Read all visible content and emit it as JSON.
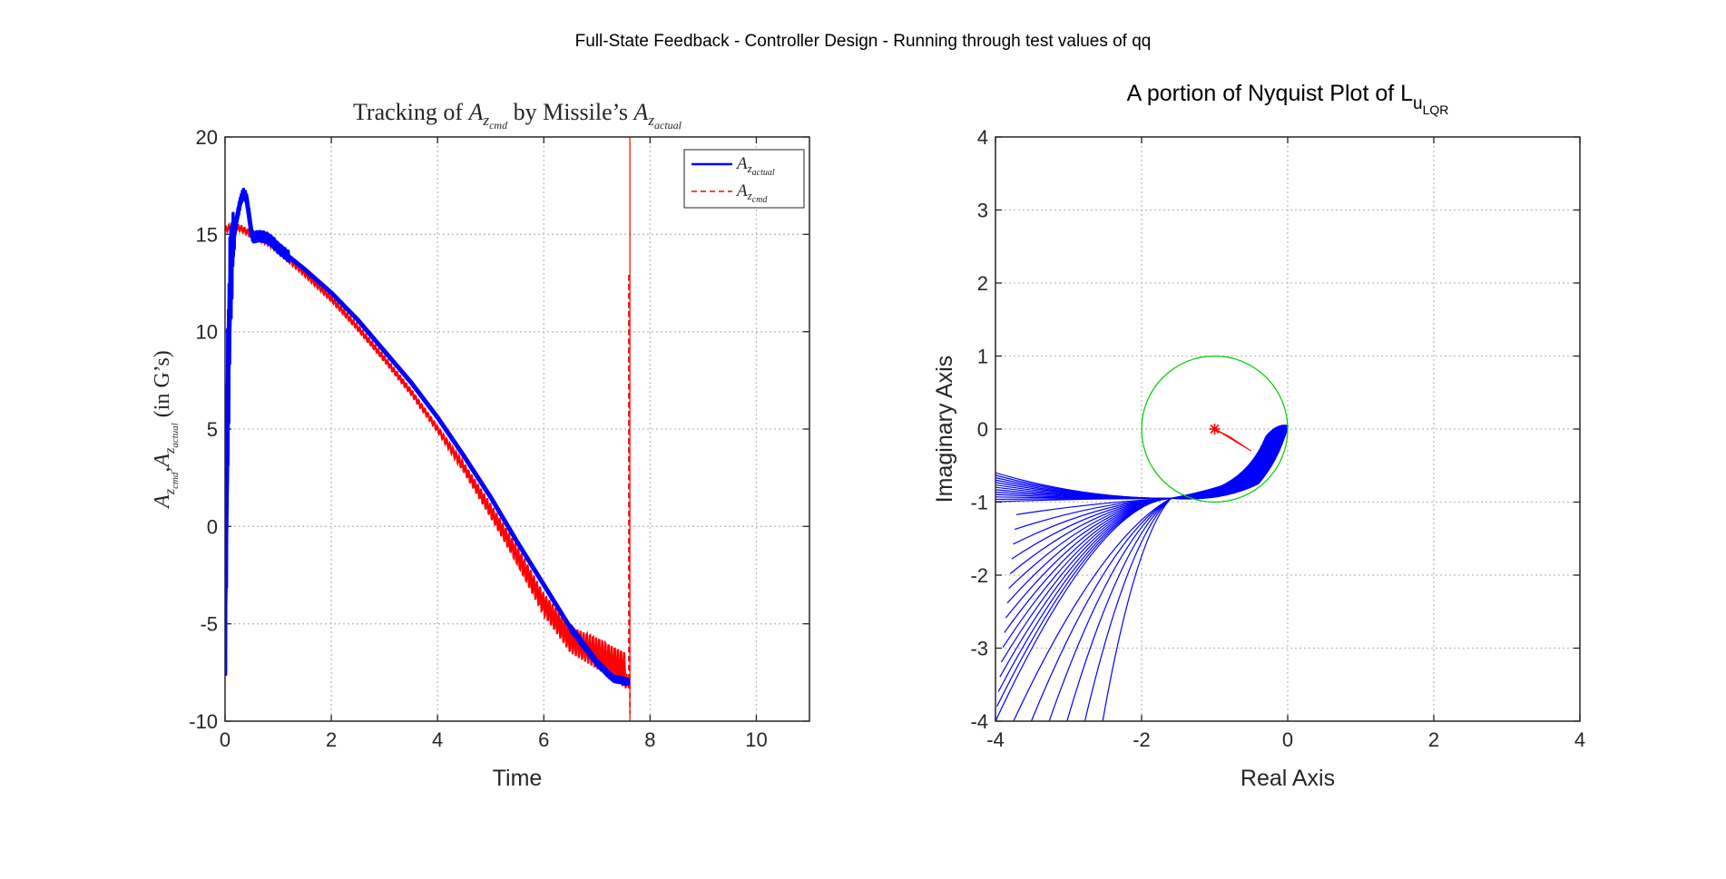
{
  "figure": {
    "suptitle": "Full-State Feedback - Controller Design - Running through test values of qq"
  },
  "chart_data": [
    {
      "type": "line",
      "title": "Tracking of A_zcmd by Missile's A_zactual",
      "title_parts": {
        "prefix": "Tracking of ",
        "a1": "A",
        "s1": "z",
        "ss1": "cmd",
        "mid": " by Missile’s ",
        "a2": "A",
        "s2": "z",
        "ss2": "actual"
      },
      "xlabel": "Time",
      "ylabel": "A_zcmd, A_zactual (in G's)",
      "ylabel_parts": {
        "a1": "A",
        "s1": "z",
        "ss1": "cmd",
        "comma": ",",
        "a2": "A",
        "s2": "z",
        "ss2": "actual",
        "rest": "  (in G’s)"
      },
      "xlim": [
        0,
        11
      ],
      "ylim": [
        -10,
        20
      ],
      "xticks": [
        "0",
        "2",
        "4",
        "6",
        "8",
        "10"
      ],
      "xtick_values": [
        0,
        2,
        4,
        6,
        8,
        10
      ],
      "yticks": [
        "-10",
        "-5",
        "0",
        "5",
        "10",
        "15",
        "20"
      ],
      "ytick_values": [
        -10,
        -5,
        0,
        5,
        10,
        15,
        20
      ],
      "grid": true,
      "legend_location": "top-right",
      "legend": [
        {
          "label": "A_zactual",
          "a": "A",
          "s": "z",
          "ss": "actual",
          "style": "solid"
        },
        {
          "label": "A_zcmd",
          "a": "A",
          "s": "z",
          "ss": "cmd",
          "style": "dashed"
        }
      ],
      "series": [
        {
          "name": "A_zactual",
          "color": "#0000ff",
          "style": "solid",
          "x": [
            0.0,
            0.03,
            0.06,
            0.1,
            0.15,
            0.2,
            0.25,
            0.3,
            0.35,
            0.4,
            0.45,
            0.5,
            0.55,
            0.6,
            0.7,
            0.8,
            0.9,
            1.0,
            1.5,
            2.0,
            2.5,
            3.0,
            3.5,
            4.0,
            4.5,
            5.0,
            5.5,
            6.0,
            6.5,
            7.0,
            7.3,
            7.6
          ],
          "y": [
            -4.2,
            2.0,
            8.0,
            12.5,
            14.6,
            15.5,
            16.2,
            16.8,
            17.1,
            16.9,
            16.0,
            15.0,
            14.8,
            14.9,
            14.9,
            14.8,
            14.6,
            14.3,
            13.2,
            12.0,
            10.6,
            9.0,
            7.4,
            5.6,
            3.6,
            1.5,
            -0.8,
            -3.0,
            -5.2,
            -7.0,
            -7.8,
            -8.0
          ]
        },
        {
          "name": "A_zcmd",
          "color": "#ff0000",
          "style": "dashed",
          "x": [
            0.0,
            0.1,
            0.3,
            0.5,
            0.8,
            1.0,
            1.5,
            2.0,
            2.5,
            3.0,
            3.5,
            4.0,
            4.5,
            5.0,
            5.5,
            6.0,
            6.5,
            7.0,
            7.3,
            7.55,
            7.6,
            7.6,
            7.62
          ],
          "y": [
            15.2,
            15.4,
            15.3,
            15.0,
            14.6,
            14.2,
            13.0,
            11.7,
            10.2,
            8.6,
            6.9,
            5.0,
            3.0,
            0.8,
            -1.5,
            -4.0,
            -5.8,
            -6.5,
            -7.0,
            -7.4,
            -8.4,
            13.0,
            -9.6
          ]
        }
      ],
      "vertical_line": {
        "x": 7.62,
        "y_range": [
          -10,
          20
        ],
        "color": "#ff0000"
      }
    },
    {
      "type": "line",
      "title": "A portion of Nyquist Plot of L_uLQR",
      "title_parts": {
        "main": "A portion of Nyquist Plot of L",
        "sub": "u",
        "subsub": "LQR"
      },
      "xlabel": "Real Axis",
      "ylabel": "Imaginary Axis",
      "xlim": [
        -4,
        4
      ],
      "ylim": [
        -4,
        4
      ],
      "xticks": [
        "-4",
        "-2",
        "0",
        "2",
        "4"
      ],
      "xtick_values": [
        -4,
        -2,
        0,
        2,
        4
      ],
      "yticks": [
        "-4",
        "-3",
        "-2",
        "-1",
        "0",
        "1",
        "2",
        "3",
        "4"
      ],
      "ytick_values": [
        -4,
        -3,
        -2,
        -1,
        0,
        1,
        2,
        3,
        4
      ],
      "grid": true,
      "unit_circle": {
        "center": [
          -1,
          0
        ],
        "radius": 1,
        "color": "#00cc00"
      },
      "critical_point": {
        "x": -1,
        "y": 0,
        "marker": "*",
        "color": "#ff0000"
      },
      "nyquist_family": {
        "color": "#0000ff",
        "count": 28,
        "start_imag_at_real_minus4": [
          -0.6,
          -1.0
        ],
        "end_imag_at_real_minus4": [
          -1.0,
          -4.0
        ],
        "join_point": [
          -1.6,
          -0.95
        ],
        "lobe_tip": [
          0.0,
          0.05
        ],
        "note": "family of Nyquist curves converging near (-1.6,-0.95) and looping to the origin"
      },
      "red_wedge": {
        "color": "#ff0000",
        "points": [
          [
            -1.0,
            0.0
          ],
          [
            -0.5,
            -0.3
          ],
          [
            -0.8,
            -0.1
          ]
        ]
      }
    }
  ]
}
